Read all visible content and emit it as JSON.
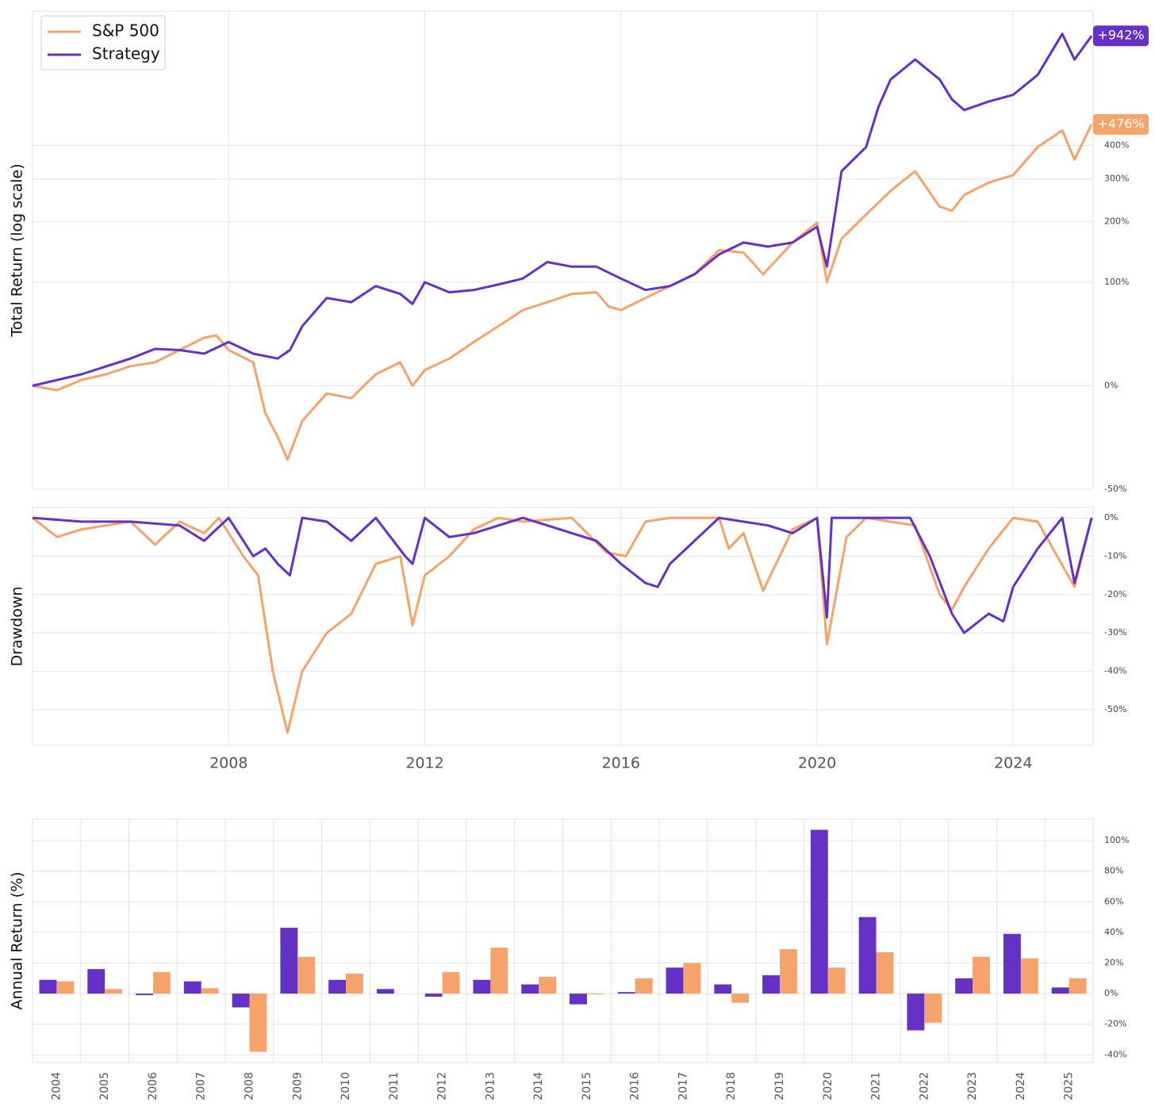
{
  "chart_data": [
    {
      "type": "line",
      "y_label": "Total Return (log scale)",
      "yscale": "log",
      "legend": "upper left",
      "xlim": [
        2004.0,
        2025.63
      ],
      "ylim": [
        -50,
        1130
      ],
      "yticks": [
        {
          "value": -50,
          "label": "-50%"
        },
        {
          "value": 0,
          "label": "0%"
        },
        {
          "value": 100,
          "label": "100%"
        },
        {
          "value": 200,
          "label": "200%"
        },
        {
          "value": 300,
          "label": "300%"
        },
        {
          "value": 400,
          "label": "400%"
        }
      ],
      "series": [
        {
          "name": "S&P 500",
          "color": "#f5a26b",
          "end_label": "+476%",
          "x": [
            2004.0,
            2004.5,
            2005.0,
            2005.5,
            2006.0,
            2006.5,
            2007.0,
            2007.5,
            2007.75,
            2008.0,
            2008.5,
            2008.75,
            2009.0,
            2009.2,
            2009.5,
            2010.0,
            2010.5,
            2011.0,
            2011.5,
            2011.75,
            2012.0,
            2012.5,
            2013.0,
            2013.5,
            2014.0,
            2014.5,
            2015.0,
            2015.5,
            2015.75,
            2016.0,
            2016.5,
            2017.0,
            2017.5,
            2018.0,
            2018.5,
            2018.9,
            2019.5,
            2020.0,
            2020.2,
            2020.5,
            2021.0,
            2021.5,
            2022.0,
            2022.5,
            2022.75,
            2023.0,
            2023.5,
            2024.0,
            2024.5,
            2025.0,
            2025.25,
            2025.6
          ],
          "values": [
            0,
            -3,
            4,
            8,
            14,
            17,
            27,
            38,
            40,
            27,
            17,
            -17,
            -29,
            -39,
            -21,
            -5,
            -8,
            8,
            17,
            0,
            11,
            20,
            34,
            49,
            66,
            75,
            85,
            87,
            70,
            66,
            80,
            95,
            111,
            148,
            144,
            111,
            161,
            198,
            100,
            168,
            215,
            269,
            321,
            232,
            223,
            259,
            290,
            310,
            395,
            453,
            355,
            476
          ]
        },
        {
          "name": "Strategy",
          "color": "#6431c4",
          "end_label": "+942%",
          "x": [
            2004.0,
            2005.0,
            2006.0,
            2006.5,
            2007.0,
            2007.5,
            2008.0,
            2008.5,
            2009.0,
            2009.25,
            2009.5,
            2010.0,
            2010.5,
            2011.0,
            2011.5,
            2011.75,
            2012.0,
            2012.5,
            2013.0,
            2013.5,
            2014.0,
            2014.5,
            2015.0,
            2015.5,
            2016.0,
            2016.5,
            2017.0,
            2017.5,
            2018.0,
            2018.5,
            2019.0,
            2019.5,
            2020.0,
            2020.2,
            2020.5,
            2021.0,
            2021.25,
            2021.5,
            2022.0,
            2022.5,
            2022.75,
            2023.0,
            2023.5,
            2024.0,
            2024.5,
            2025.0,
            2025.25,
            2025.6
          ],
          "values": [
            0,
            8,
            20,
            28,
            27,
            24,
            34,
            24,
            20,
            27,
            49,
            80,
            75,
            95,
            85,
            73,
            100,
            87,
            90,
            97,
            105,
            129,
            122,
            122,
            105,
            90,
            95,
            111,
            141,
            161,
            154,
            161,
            190,
            122,
            321,
            395,
            546,
            678,
            789,
            678,
            581,
            534,
            571,
            602,
            703,
            956,
            789,
            942
          ]
        }
      ]
    },
    {
      "type": "line",
      "y_label": "Drawdown",
      "xlim": [
        2004.0,
        2025.63
      ],
      "ylim": [
        -59.3,
        2.7
      ],
      "xticks": [
        2008,
        2012,
        2016,
        2020,
        2024
      ],
      "yticks": [
        {
          "value": 0,
          "label": "0%"
        },
        {
          "value": -10,
          "label": "-10%"
        },
        {
          "value": -20,
          "label": "-20%"
        },
        {
          "value": -30,
          "label": "-30%"
        },
        {
          "value": -40,
          "label": "-40%"
        },
        {
          "value": -50,
          "label": "-50%"
        }
      ],
      "series": [
        {
          "color": "#f5a26b",
          "x": [
            2004.0,
            2004.5,
            2005.0,
            2005.5,
            2006.0,
            2006.5,
            2007.0,
            2007.5,
            2007.8,
            2008.3,
            2008.6,
            2008.9,
            2009.2,
            2009.5,
            2010.0,
            2010.5,
            2011.0,
            2011.5,
            2011.75,
            2012.0,
            2012.5,
            2013.0,
            2013.5,
            2014.0,
            2015.0,
            2015.7,
            2016.1,
            2016.5,
            2017.0,
            2018.0,
            2018.2,
            2018.5,
            2018.9,
            2019.5,
            2020.0,
            2020.2,
            2020.6,
            2021.0,
            2022.0,
            2022.5,
            2022.75,
            2023.0,
            2023.5,
            2024.0,
            2024.5,
            2025.25,
            2025.6
          ],
          "values": [
            0,
            -5,
            -3,
            -2,
            -1,
            -7,
            -1,
            -4,
            0,
            -10,
            -15,
            -40,
            -56,
            -40,
            -30,
            -25,
            -12,
            -10,
            -28,
            -15,
            -10,
            -3,
            0,
            -1,
            0,
            -9,
            -10,
            -1,
            0,
            0,
            -8,
            -4,
            -19,
            -3,
            0,
            -33,
            -5,
            0,
            -2,
            -20,
            -24,
            -18,
            -8,
            0,
            -1,
            -18,
            0
          ]
        },
        {
          "color": "#6431c4",
          "x": [
            2004.0,
            2005.0,
            2006.0,
            2007.0,
            2007.5,
            2008.0,
            2008.5,
            2008.75,
            2009.0,
            2009.25,
            2009.5,
            2010.0,
            2010.5,
            2011.0,
            2011.6,
            2011.75,
            2012.0,
            2012.5,
            2013.0,
            2014.0,
            2014.5,
            2015.0,
            2015.5,
            2016.0,
            2016.5,
            2016.75,
            2017.0,
            2017.5,
            2018.0,
            2019.0,
            2019.5,
            2020.0,
            2020.2,
            2020.3,
            2021.0,
            2021.9,
            2022.3,
            2022.75,
            2023.0,
            2023.5,
            2023.8,
            2024.0,
            2024.5,
            2025.0,
            2025.25,
            2025.6
          ],
          "values": [
            0,
            -1,
            -1,
            -2,
            -6,
            0,
            -10,
            -8,
            -12,
            -15,
            0,
            -1,
            -6,
            0,
            -10,
            -12,
            0,
            -5,
            -4,
            0,
            -2,
            -4,
            -6,
            -12,
            -17,
            -18,
            -12,
            -6,
            0,
            -2,
            -4,
            0,
            -26,
            0,
            0,
            0,
            -10,
            -25,
            -30,
            -25,
            -27,
            -18,
            -8,
            0,
            -17,
            0
          ]
        }
      ]
    },
    {
      "type": "bar",
      "y_label": "Annual Return (%)",
      "ylim": [
        -45,
        114
      ],
      "yticks": [
        {
          "value": -40,
          "label": "-40%"
        },
        {
          "value": -20,
          "label": "-20%"
        },
        {
          "value": 0,
          "label": "0%"
        },
        {
          "value": 20,
          "label": "20%"
        },
        {
          "value": 40,
          "label": "40%"
        },
        {
          "value": 60,
          "label": "60%"
        },
        {
          "value": 80,
          "label": "80%"
        },
        {
          "value": 100,
          "label": "100%"
        }
      ],
      "categories": [
        "2004",
        "2005",
        "2006",
        "2007",
        "2008",
        "2009",
        "2010",
        "2011",
        "2012",
        "2013",
        "2014",
        "2015",
        "2016",
        "2017",
        "2018",
        "2019",
        "2020",
        "2021",
        "2022",
        "2023",
        "2024",
        "2025"
      ],
      "series": [
        {
          "color": "#6431c4",
          "values": [
            9,
            16,
            -1,
            8,
            -9,
            43,
            9,
            3,
            -2,
            9,
            6,
            -7,
            1,
            17,
            6,
            12,
            107,
            50,
            -24,
            10,
            39,
            4
          ]
        },
        {
          "color": "#f5a26b",
          "values": [
            8,
            3,
            14,
            3.5,
            -38,
            24,
            13,
            0,
            14,
            30,
            11,
            -0.5,
            10,
            20,
            -6,
            29,
            17,
            27,
            -19,
            24,
            23,
            10
          ]
        }
      ]
    }
  ]
}
